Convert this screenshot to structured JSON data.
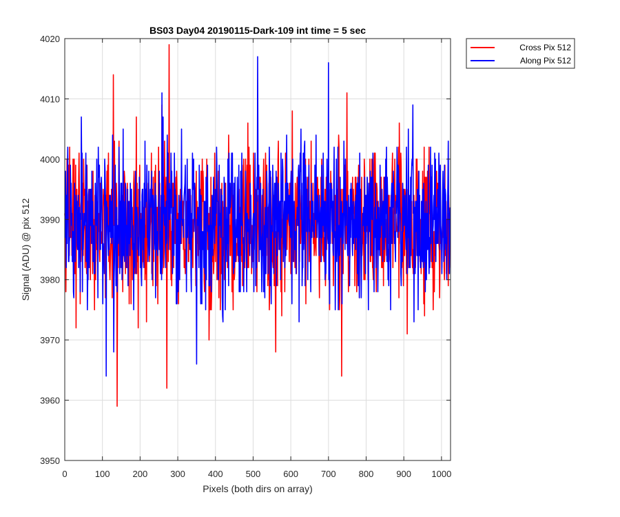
{
  "chart_data": {
    "type": "line",
    "title": "BS03 Day04 20190115-Dark-109 int time = 5 sec",
    "xlabel": "Pixels (both dirs on array)",
    "ylabel": "Signal (ADU) @ pix 512",
    "xlim": [
      0,
      1024
    ],
    "ylim": [
      3950,
      4020
    ],
    "x_ticks": [
      0,
      100,
      200,
      300,
      400,
      500,
      600,
      700,
      800,
      900,
      1000
    ],
    "y_ticks": [
      3950,
      3960,
      3970,
      3980,
      3990,
      4000,
      4010,
      4020
    ],
    "x_tick_labels": [
      "0",
      "100",
      "200",
      "300",
      "400",
      "500",
      "600",
      "700",
      "800",
      "900",
      "1000"
    ],
    "y_tick_labels": [
      "3950",
      "3960",
      "3970",
      "3980",
      "3990",
      "4000",
      "4010",
      "4020"
    ],
    "grid": true,
    "legend_position": "outside-top-right",
    "series": [
      {
        "name": "Cross Pix 512",
        "color": "#ff0000",
        "points": 1024,
        "mean": 3989,
        "notable_points": [
          [
            277,
            4019
          ],
          [
            139,
            3959
          ],
          [
            129,
            4014
          ],
          [
            271,
            3962
          ],
          [
            735,
            3964
          ]
        ]
      },
      {
        "name": "Along Pix 512",
        "color": "#0000ff",
        "points": 1024,
        "mean": 3990,
        "notable_points": [
          [
            512,
            4017
          ],
          [
            700,
            4016
          ],
          [
            110,
            3964
          ],
          [
            130,
            3968
          ],
          [
            350,
            3966
          ]
        ]
      }
    ]
  }
}
